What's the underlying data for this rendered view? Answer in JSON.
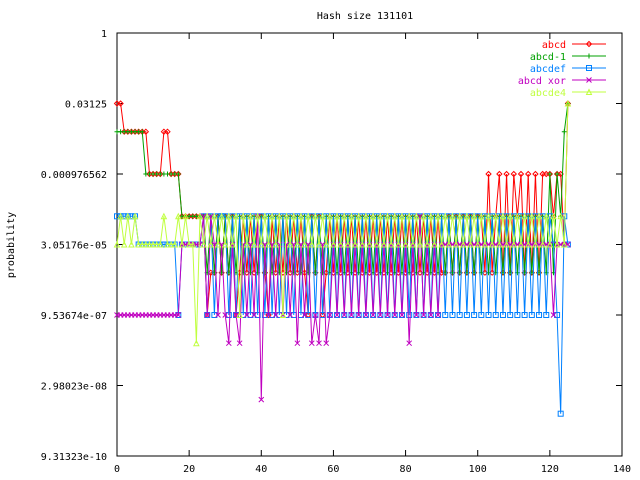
{
  "chart_data": {
    "type": "line",
    "title": "Hash size 131101",
    "ylabel": "probability",
    "xlabel": "",
    "xlim": [
      0,
      140
    ],
    "x_ticks": [
      "0",
      "20",
      "40",
      "60",
      "80",
      "100",
      "120",
      "140"
    ],
    "x_tick_values": [
      0,
      20,
      40,
      60,
      80,
      100,
      120,
      140
    ],
    "y_scale": "log2",
    "ylim_exp": [
      -30,
      0
    ],
    "y_ticks": [
      "1",
      "0.03125",
      "0.000976562",
      "3.05176e-05",
      "9.53674e-07",
      "2.98023e-08",
      "9.31323e-10"
    ],
    "y_tick_exps": [
      0,
      -5,
      -10,
      -15,
      -20,
      -25,
      -30
    ],
    "grid": false,
    "legend_position": "top-right",
    "values_note": "y values stored as base-2 exponents (value = 2^y)",
    "series": [
      {
        "name": "abcd",
        "color": "#ff0000",
        "marker": "diamond",
        "x": [
          0,
          1,
          2,
          3,
          4,
          5,
          6,
          7,
          8,
          9,
          10,
          11,
          12,
          13,
          14,
          15,
          16,
          17,
          18,
          19,
          20,
          21,
          22,
          23,
          24,
          25,
          26,
          27,
          28,
          29,
          30,
          31,
          32,
          33,
          34,
          35,
          36,
          37,
          38,
          39,
          40,
          41,
          42,
          43,
          44,
          45,
          46,
          47,
          48,
          49,
          50,
          51,
          52,
          53,
          54,
          55,
          56,
          57,
          58,
          59,
          60,
          61,
          62,
          63,
          64,
          65,
          66,
          67,
          68,
          69,
          70,
          71,
          72,
          73,
          74,
          75,
          76,
          77,
          78,
          79,
          80,
          81,
          82,
          83,
          84,
          85,
          86,
          87,
          88,
          89,
          90,
          91,
          92,
          93,
          94,
          95,
          96,
          97,
          98,
          99,
          100,
          101,
          102,
          103,
          104,
          105,
          106,
          107,
          108,
          109,
          110,
          111,
          112,
          113,
          114,
          115,
          116,
          117,
          118,
          119,
          120,
          121,
          122,
          123,
          124,
          125
        ],
        "y": [
          -5,
          -5,
          -7,
          -7,
          -7,
          -7,
          -7,
          -7,
          -7,
          -10,
          -10,
          -10,
          -10,
          -7,
          -7,
          -10,
          -10,
          -10,
          -13,
          -13,
          -13,
          -13,
          -13,
          -13,
          -13,
          -20,
          -17,
          -17,
          -13,
          -17,
          -13,
          -17,
          -13,
          -20,
          -17,
          -13,
          -17,
          -13,
          -17,
          -13,
          -13,
          -17,
          -20,
          -13,
          -17,
          -13,
          -17,
          -13,
          -17,
          -13,
          -17,
          -13,
          -17,
          -20,
          -13,
          -17,
          -13,
          -20,
          -17,
          -13,
          -17,
          -13,
          -17,
          -13,
          -17,
          -13,
          -17,
          -13,
          -17,
          -13,
          -17,
          -13,
          -17,
          -13,
          -17,
          -13,
          -17,
          -13,
          -17,
          -13,
          -17,
          -13,
          -17,
          -13,
          -17,
          -13,
          -17,
          -13,
          -17,
          -13,
          -17,
          -17,
          -13,
          -17,
          -13,
          -17,
          -13,
          -17,
          -13,
          -17,
          -13,
          -13,
          -17,
          -10,
          -17,
          -13,
          -10,
          -17,
          -10,
          -17,
          -10,
          -13,
          -10,
          -17,
          -10,
          -17,
          -10,
          -17,
          -10,
          -10,
          -10,
          -13,
          -10,
          -10,
          -15,
          -5
        ]
      },
      {
        "name": "abcd-1",
        "color": "#00a000",
        "marker": "plus",
        "x": [
          0,
          1,
          2,
          3,
          4,
          5,
          6,
          7,
          8,
          9,
          10,
          11,
          12,
          13,
          14,
          15,
          16,
          17,
          18,
          19,
          20,
          21,
          22,
          23,
          24,
          25,
          26,
          27,
          28,
          29,
          30,
          31,
          32,
          33,
          34,
          35,
          36,
          37,
          38,
          39,
          40,
          41,
          42,
          43,
          44,
          45,
          46,
          47,
          48,
          49,
          50,
          51,
          52,
          53,
          54,
          55,
          56,
          57,
          58,
          59,
          60,
          61,
          62,
          63,
          64,
          65,
          66,
          67,
          68,
          69,
          70,
          71,
          72,
          73,
          74,
          75,
          76,
          77,
          78,
          79,
          80,
          81,
          82,
          83,
          84,
          85,
          86,
          87,
          88,
          89,
          90,
          91,
          92,
          93,
          94,
          95,
          96,
          97,
          98,
          99,
          100,
          101,
          102,
          103,
          104,
          105,
          106,
          107,
          108,
          109,
          110,
          111,
          112,
          113,
          114,
          115,
          116,
          117,
          118,
          119,
          120,
          121,
          122,
          123,
          124,
          125
        ],
        "y": [
          -7,
          -7,
          -7,
          -7,
          -7,
          -7,
          -7,
          -7,
          -10,
          -10,
          -10,
          -10,
          -10,
          -10,
          -10,
          -10,
          -10,
          -10,
          -13,
          -13,
          -13,
          -13,
          -13,
          -13,
          -13,
          -17,
          -13,
          -17,
          -13,
          -17,
          -13,
          -17,
          -13,
          -17,
          -13,
          -17,
          -13,
          -17,
          -13,
          -17,
          -13,
          -17,
          -13,
          -17,
          -13,
          -17,
          -13,
          -17,
          -13,
          -17,
          -13,
          -17,
          -13,
          -17,
          -13,
          -17,
          -13,
          -17,
          -13,
          -17,
          -13,
          -17,
          -13,
          -17,
          -13,
          -17,
          -13,
          -17,
          -13,
          -17,
          -13,
          -17,
          -13,
          -17,
          -13,
          -17,
          -13,
          -17,
          -13,
          -17,
          -13,
          -17,
          -13,
          -17,
          -13,
          -17,
          -13,
          -17,
          -13,
          -17,
          -13,
          -17,
          -13,
          -17,
          -13,
          -17,
          -13,
          -17,
          -13,
          -17,
          -13,
          -17,
          -13,
          -17,
          -13,
          -17,
          -13,
          -17,
          -13,
          -17,
          -13,
          -17,
          -13,
          -17,
          -13,
          -17,
          -13,
          -17,
          -13,
          -17,
          -10,
          -17,
          -10,
          -13,
          -7,
          -5
        ]
      },
      {
        "name": "abcdef",
        "color": "#0080ff",
        "marker": "square",
        "x": [
          0,
          1,
          2,
          3,
          4,
          5,
          6,
          7,
          8,
          9,
          10,
          11,
          12,
          13,
          14,
          15,
          16,
          17,
          18,
          19,
          20,
          21,
          22,
          23,
          24,
          25,
          26,
          27,
          28,
          29,
          30,
          31,
          32,
          33,
          34,
          35,
          36,
          37,
          38,
          39,
          40,
          41,
          42,
          43,
          44,
          45,
          46,
          47,
          48,
          49,
          50,
          51,
          52,
          53,
          54,
          55,
          56,
          57,
          58,
          59,
          60,
          61,
          62,
          63,
          64,
          65,
          66,
          67,
          68,
          69,
          70,
          71,
          72,
          73,
          74,
          75,
          76,
          77,
          78,
          79,
          80,
          81,
          82,
          83,
          84,
          85,
          86,
          87,
          88,
          89,
          90,
          91,
          92,
          93,
          94,
          95,
          96,
          97,
          98,
          99,
          100,
          101,
          102,
          103,
          104,
          105,
          106,
          107,
          108,
          109,
          110,
          111,
          112,
          113,
          114,
          115,
          116,
          117,
          118,
          119,
          120,
          121,
          122,
          123,
          124,
          125
        ],
        "y": [
          -13,
          -13,
          -13,
          -13,
          -13,
          -13,
          -15,
          -15,
          -15,
          -15,
          -15,
          -15,
          -15,
          -15,
          -15,
          -15,
          -15,
          -20,
          -15,
          -15,
          -15,
          -15,
          -15,
          -15,
          -13,
          -20,
          -13,
          -20,
          -13,
          -13,
          -13,
          -20,
          -13,
          -20,
          -13,
          -20,
          -13,
          -20,
          -13,
          -20,
          -13,
          -20,
          -13,
          -20,
          -13,
          -20,
          -13,
          -20,
          -13,
          -20,
          -13,
          -20,
          -13,
          -20,
          -13,
          -20,
          -13,
          -20,
          -13,
          -20,
          -13,
          -20,
          -13,
          -20,
          -13,
          -20,
          -13,
          -20,
          -13,
          -20,
          -13,
          -20,
          -13,
          -20,
          -13,
          -20,
          -13,
          -20,
          -13,
          -20,
          -13,
          -20,
          -13,
          -20,
          -13,
          -20,
          -13,
          -20,
          -13,
          -20,
          -13,
          -20,
          -13,
          -20,
          -13,
          -20,
          -13,
          -20,
          -13,
          -20,
          -13,
          -20,
          -13,
          -20,
          -13,
          -20,
          -13,
          -20,
          -13,
          -20,
          -13,
          -20,
          -13,
          -20,
          -13,
          -20,
          -13,
          -20,
          -13,
          -20,
          -13,
          -15,
          -20,
          -27,
          -13,
          -15
        ]
      },
      {
        "name": "abcd xor",
        "color": "#c000c0",
        "marker": "x",
        "x": [
          0,
          1,
          2,
          3,
          4,
          5,
          6,
          7,
          8,
          9,
          10,
          11,
          12,
          13,
          14,
          15,
          16,
          17,
          18,
          19,
          20,
          21,
          22,
          23,
          24,
          25,
          26,
          27,
          28,
          29,
          30,
          31,
          32,
          33,
          34,
          35,
          36,
          37,
          38,
          39,
          40,
          41,
          42,
          43,
          44,
          45,
          46,
          47,
          48,
          49,
          50,
          51,
          52,
          53,
          54,
          55,
          56,
          57,
          58,
          59,
          60,
          61,
          62,
          63,
          64,
          65,
          66,
          67,
          68,
          69,
          70,
          71,
          72,
          73,
          74,
          75,
          76,
          77,
          78,
          79,
          80,
          81,
          82,
          83,
          84,
          85,
          86,
          87,
          88,
          89,
          90,
          91,
          92,
          93,
          94,
          95,
          96,
          97,
          98,
          99,
          100,
          101,
          102,
          103,
          104,
          105,
          106,
          107,
          108,
          109,
          110,
          111,
          112,
          113,
          114,
          115,
          116,
          117,
          118,
          119,
          120,
          121,
          122,
          123,
          124,
          125
        ],
        "y": [
          -20,
          -20,
          -20,
          -20,
          -20,
          -20,
          -20,
          -20,
          -20,
          -20,
          -20,
          -20,
          -20,
          -20,
          -20,
          -20,
          -20,
          -20,
          -15,
          -15,
          -15,
          -15,
          -15,
          -15,
          -13,
          -20,
          -13,
          -15,
          -20,
          -15,
          -20,
          -22,
          -15,
          -20,
          -22,
          -15,
          -20,
          -15,
          -20,
          -13,
          -26,
          -15,
          -20,
          -15,
          -20,
          -15,
          -20,
          -15,
          -20,
          -15,
          -22,
          -15,
          -20,
          -15,
          -22,
          -20,
          -22,
          -15,
          -22,
          -20,
          -15,
          -20,
          -15,
          -20,
          -15,
          -20,
          -15,
          -20,
          -15,
          -20,
          -15,
          -20,
          -15,
          -20,
          -15,
          -20,
          -15,
          -20,
          -15,
          -20,
          -15,
          -22,
          -15,
          -20,
          -13,
          -20,
          -15,
          -20,
          -15,
          -20,
          -15,
          -15,
          -15,
          -15,
          -15,
          -15,
          -15,
          -15,
          -15,
          -15,
          -15,
          -15,
          -15,
          -15,
          -15,
          -15,
          -15,
          -15,
          -15,
          -15,
          -15,
          -15,
          -15,
          -15,
          -15,
          -15,
          -15,
          -15,
          -15,
          -15,
          -15,
          -20,
          -15,
          -15,
          -15,
          -15
        ]
      },
      {
        "name": "abcde4",
        "color": "#c0ff40",
        "marker": "triangle",
        "x": [
          0,
          1,
          2,
          3,
          4,
          5,
          6,
          7,
          8,
          9,
          10,
          11,
          12,
          13,
          14,
          15,
          16,
          17,
          18,
          19,
          20,
          21,
          22,
          23,
          24,
          25,
          26,
          27,
          28,
          29,
          30,
          31,
          32,
          33,
          34,
          35,
          36,
          37,
          38,
          39,
          40,
          41,
          42,
          43,
          44,
          45,
          46,
          47,
          48,
          49,
          50,
          51,
          52,
          53,
          54,
          55,
          56,
          57,
          58,
          59,
          60,
          61,
          62,
          63,
          64,
          65,
          66,
          67,
          68,
          69,
          70,
          71,
          72,
          73,
          74,
          75,
          76,
          77,
          78,
          79,
          80,
          81,
          82,
          83,
          84,
          85,
          86,
          87,
          88,
          89,
          90,
          91,
          92,
          93,
          94,
          95,
          96,
          97,
          98,
          99,
          100,
          101,
          102,
          103,
          104,
          105,
          106,
          107,
          108,
          109,
          110,
          111,
          112,
          113,
          114,
          115,
          116,
          117,
          118,
          119,
          120,
          121,
          122,
          123,
          124,
          125
        ],
        "y": [
          -15,
          -13,
          -15,
          -13,
          -15,
          -13,
          -15,
          -15,
          -15,
          -15,
          -15,
          -15,
          -15,
          -13,
          -15,
          -15,
          -15,
          -13,
          -15,
          -13,
          -15,
          -15,
          -22,
          -13,
          -15,
          -13,
          -15,
          -13,
          -15,
          -13,
          -15,
          -13,
          -15,
          -13,
          -20,
          -13,
          -15,
          -13,
          -15,
          -13,
          -15,
          -13,
          -15,
          -13,
          -15,
          -13,
          -20,
          -13,
          -15,
          -13,
          -15,
          -13,
          -15,
          -13,
          -15,
          -13,
          -15,
          -13,
          -15,
          -13,
          -15,
          -13,
          -15,
          -13,
          -15,
          -13,
          -15,
          -13,
          -15,
          -13,
          -15,
          -13,
          -15,
          -13,
          -15,
          -13,
          -15,
          -13,
          -15,
          -13,
          -15,
          -13,
          -15,
          -13,
          -15,
          -13,
          -15,
          -13,
          -15,
          -13,
          -15,
          -13,
          -15,
          -13,
          -15,
          -13,
          -15,
          -13,
          -15,
          -13,
          -15,
          -13,
          -15,
          -13,
          -15,
          -13,
          -15,
          -13,
          -15,
          -13,
          -15,
          -13,
          -15,
          -13,
          -15,
          -13,
          -15,
          -13,
          -15,
          -13,
          -15,
          -13,
          -15,
          -13,
          -15,
          -5
        ]
      }
    ]
  }
}
